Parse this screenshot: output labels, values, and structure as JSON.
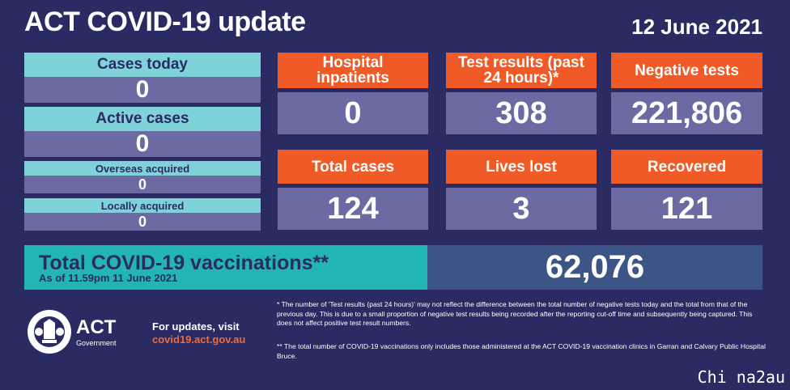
{
  "header": {
    "title": "ACT COVID-19 update",
    "date": "12 June 2021"
  },
  "left_panel": {
    "cases_today": {
      "label": "Cases today",
      "value": "0"
    },
    "active_cases": {
      "label": "Active cases",
      "value": "0"
    },
    "overseas_acquired": {
      "label": "Overseas acquired",
      "value": "0"
    },
    "locally_acquired": {
      "label": "Locally acquired",
      "value": "0"
    }
  },
  "grid": {
    "hospital": {
      "label": "Hospital inpatients",
      "value": "0"
    },
    "tests": {
      "label": "Test results (past 24 hours)*",
      "value": "308"
    },
    "negative": {
      "label": "Negative tests",
      "value": "221,806"
    },
    "total_cases": {
      "label": "Total cases",
      "value": "124"
    },
    "lives_lost": {
      "label": "Lives lost",
      "value": "3"
    },
    "recovered": {
      "label": "Recovered",
      "value": "121"
    }
  },
  "vaccinations": {
    "title": "Total COVID-19 vaccinations**",
    "subtitle": "As of 11.59pm 11 June 2021",
    "value": "62,076"
  },
  "footer": {
    "logo": {
      "act": "ACT",
      "government": "Government",
      "icon": "act-coat-of-arms"
    },
    "updates_label": "For updates, visit",
    "updates_link": "covid19.act.gov.au",
    "footnote1": "* The number of 'Test results (past 24 hours)' may not reflect the difference between the total number of negative tests today and the total from that of the previous day. This is due to a small proportion of negative test results being recorded after the reporting cut-off time and subsequently being captured. This does not affect positive test result numbers.",
    "footnote2": "** The total number of COVID-19 vaccinations only includes those administered at the ACT COVID-19 vaccination clinics in Garran and Calvary Public Hospital Bruce."
  },
  "watermark": "Chi na2au",
  "colors": {
    "background": "#2a2b63",
    "teal": "#7fd3d8",
    "orange": "#ef5a26",
    "slate": "#6b6aa3",
    "vax_teal": "#22b5b3",
    "vax_blue": "#3d5586"
  }
}
